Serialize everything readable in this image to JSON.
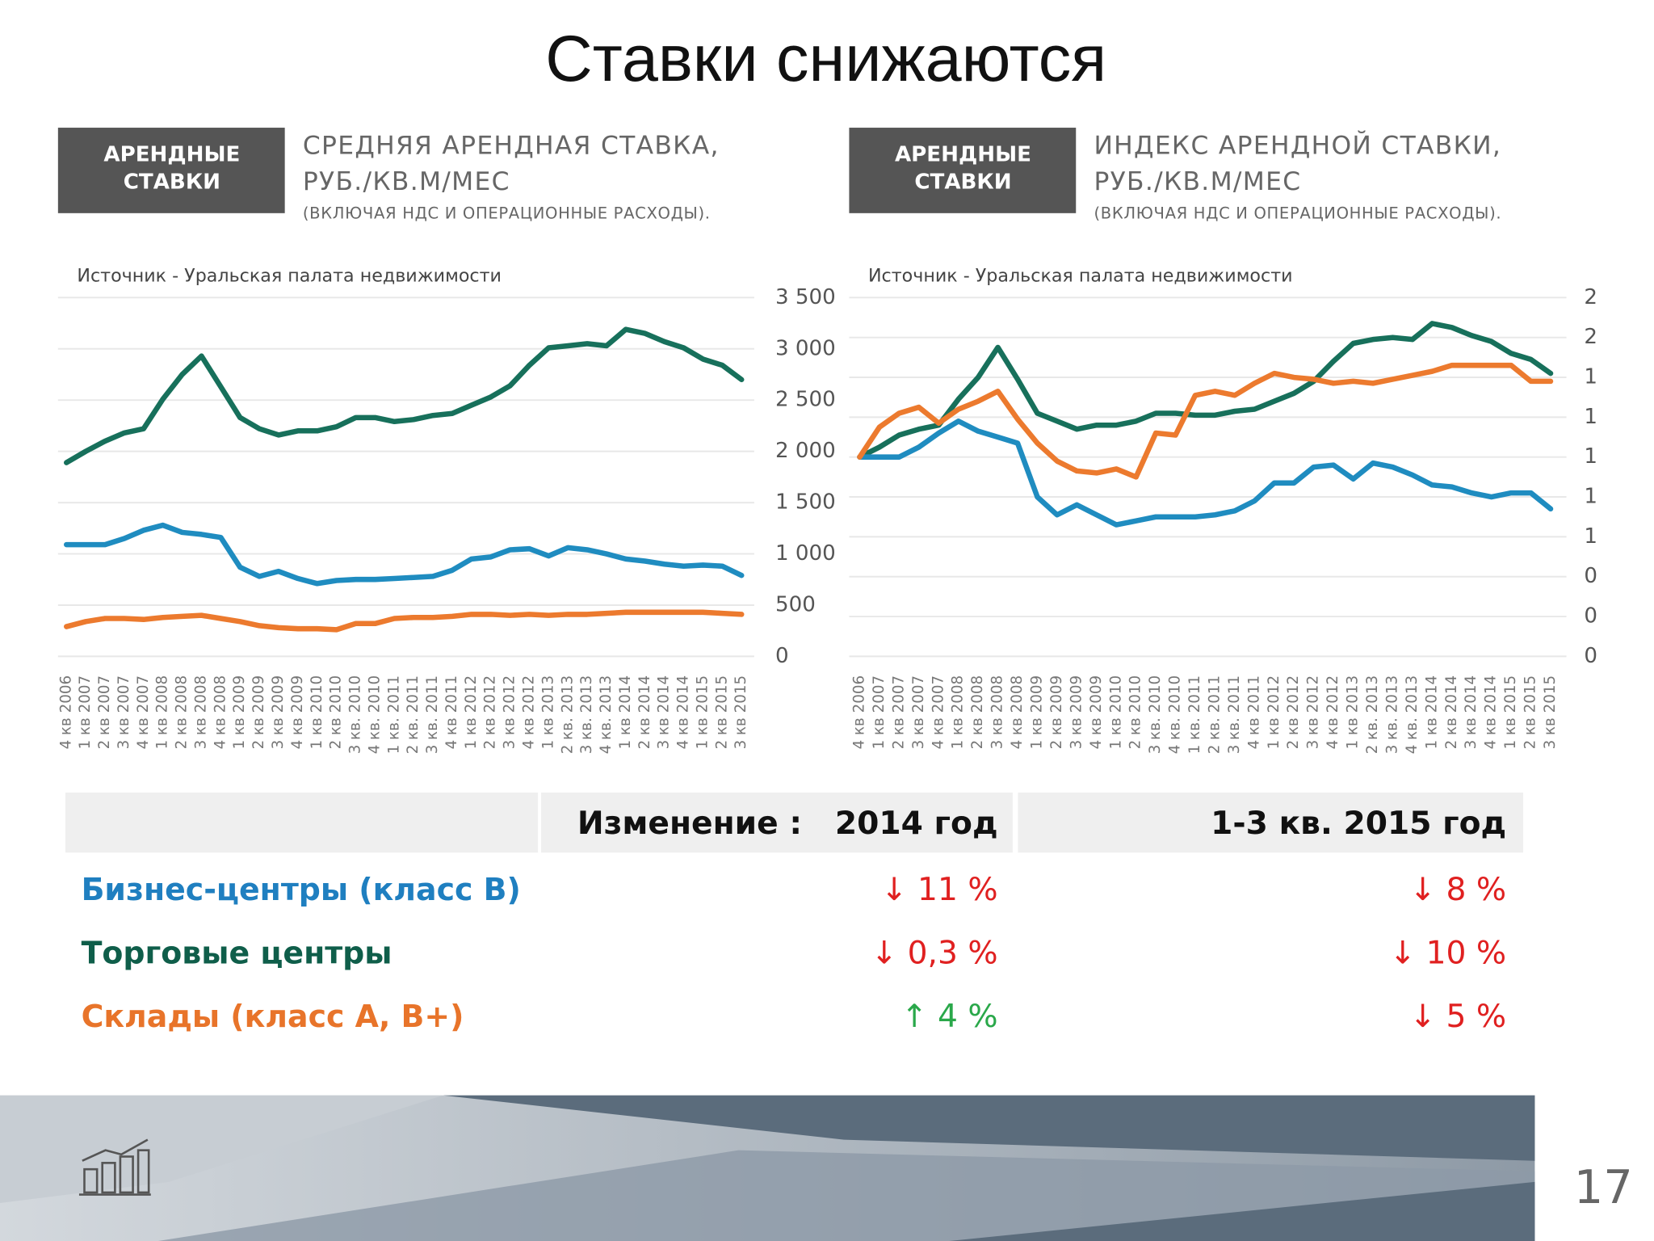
{
  "slide_title": "Ставки снижаются",
  "chart_data": [
    {
      "type": "line",
      "badge": [
        "АРЕНДНЫЕ",
        "СТАВКИ"
      ],
      "title": [
        "СРЕДНЯЯ АРЕНДНАЯ СТАВКА,",
        "РУБ./КВ.М/МЕС"
      ],
      "subtitle": "(ВКЛЮЧАЯ НДС И ОПЕРАЦИОННЫЕ РАСХОДЫ).",
      "source": "Источник - Уральская палата недвижимости",
      "categories": [
        "4 кв 2006",
        "1 кв 2007",
        "2 кв 2007",
        "3 кв 2007",
        "4 кв 2007",
        "1 кв 2008",
        "2 кв 2008",
        "3 кв 2008",
        "4 кв 2008",
        "1 кв 2009",
        "2 кв 2009",
        "3 кв 2009",
        "4 кв 2009",
        "1 кв 2010",
        "2 кв 2010",
        "3 кв. 2010",
        "4 кв. 2010",
        "1 кв. 2011",
        "2 кв. 2011",
        "3 кв. 2011",
        "4 кв 2011",
        "1 кв 2012",
        "2 кв 2012",
        "3 кв 2012",
        "4 кв 2012",
        "1 кв 2013",
        "2 кв. 2013",
        "3 кв. 2013",
        "4 кв. 2013",
        "1 кв 2014",
        "2 кв 2014",
        "3 кв 2014",
        "4 кв 2014",
        "1 кв 2015",
        "2 кв 2015",
        "3 кв 2015"
      ],
      "series": [
        {
          "color": "#17705b",
          "values": [
            1890,
            2000,
            2100,
            2180,
            2220,
            2510,
            2750,
            2930,
            2630,
            2330,
            2220,
            2160,
            2200,
            2200,
            2240,
            2330,
            2330,
            2290,
            2310,
            2350,
            2370,
            2450,
            2530,
            2640,
            2840,
            3010,
            3030,
            3050,
            3030,
            3190,
            3150,
            3070,
            3010,
            2900,
            2840,
            2700
          ]
        },
        {
          "color": "#1f8cc0",
          "values": [
            1090,
            1090,
            1090,
            1150,
            1230,
            1280,
            1210,
            1190,
            1160,
            870,
            780,
            830,
            760,
            710,
            740,
            750,
            750,
            760,
            770,
            780,
            840,
            950,
            970,
            1040,
            1050,
            980,
            1060,
            1040,
            1000,
            950,
            930,
            900,
            880,
            890,
            880,
            790
          ]
        },
        {
          "color": "#ec7a2e",
          "values": [
            290,
            340,
            370,
            370,
            360,
            380,
            390,
            400,
            370,
            340,
            300,
            280,
            270,
            270,
            260,
            320,
            320,
            370,
            380,
            380,
            390,
            410,
            410,
            400,
            410,
            400,
            410,
            410,
            420,
            430,
            430,
            430,
            430,
            430,
            420,
            410
          ]
        }
      ],
      "ylim": [
        0,
        3500
      ],
      "yticks": [
        0,
        500,
        {
          "value": 1000,
          "label": "1 000"
        },
        {
          "value": 1500,
          "label": "1 500"
        },
        {
          "value": 2000,
          "label": "2 000"
        },
        {
          "value": 2500,
          "label": "2 500"
        },
        {
          "value": 3000,
          "label": "3 000"
        },
        {
          "value": 3500,
          "label": "3 500"
        }
      ],
      "grid": true
    },
    {
      "type": "line",
      "badge": [
        "АРЕНДНЫЕ",
        "СТАВКИ"
      ],
      "title": [
        "ИНДЕКС АРЕНДНОЙ СТАВКИ,",
        "РУБ./КВ.М/МЕС"
      ],
      "subtitle": "(ВКЛЮЧАЯ НДС И ОПЕРАЦИОННЫЕ РАСХОДЫ).",
      "source": "Источник - Уральская палата недвижимости",
      "categories": [
        "4 кв 2006",
        "1 кв 2007",
        "2 кв 2007",
        "3 кв 2007",
        "4 кв 2007",
        "1 кв 2008",
        "2 кв 2008",
        "3 кв 2008",
        "4 кв 2008",
        "1 кв 2009",
        "2 кв 2009",
        "3 кв 2009",
        "4 кв 2009",
        "1 кв 2010",
        "2 кв 2010",
        "3 кв. 2010",
        "4 кв. 2010",
        "1 кв. 2011",
        "2 кв. 2011",
        "3 кв. 2011",
        "4 кв 2011",
        "1 кв 2012",
        "2 кв 2012",
        "3 кв 2012",
        "4 кв 2012",
        "1 кв 2013",
        "2 кв. 2013",
        "3 кв. 2013",
        "4 кв. 2013",
        "1 кв 2014",
        "2 кв 2014",
        "3 кв 2014",
        "4 кв 2014",
        "1 кв 2015",
        "2 кв 2015",
        "3 кв 2015"
      ],
      "series": [
        {
          "color": "#17705b",
          "values": [
            1.0,
            1.05,
            1.11,
            1.14,
            1.16,
            1.29,
            1.4,
            1.55,
            1.39,
            1.22,
            1.18,
            1.14,
            1.16,
            1.16,
            1.18,
            1.22,
            1.22,
            1.21,
            1.21,
            1.23,
            1.24,
            1.28,
            1.32,
            1.38,
            1.48,
            1.57,
            1.59,
            1.6,
            1.59,
            1.67,
            1.65,
            1.61,
            1.58,
            1.52,
            1.49,
            1.42
          ]
        },
        {
          "color": "#1f8cc0",
          "values": [
            1.0,
            1.0,
            1.0,
            1.05,
            1.12,
            1.18,
            1.13,
            1.1,
            1.07,
            0.8,
            0.71,
            0.76,
            0.71,
            0.66,
            0.68,
            0.7,
            0.7,
            0.7,
            0.71,
            0.73,
            0.78,
            0.87,
            0.87,
            0.95,
            0.96,
            0.89,
            0.97,
            0.95,
            0.91,
            0.86,
            0.85,
            0.82,
            0.8,
            0.82,
            0.82,
            0.74
          ]
        },
        {
          "color": "#ec7a2e",
          "values": [
            1.0,
            1.15,
            1.22,
            1.25,
            1.17,
            1.24,
            1.28,
            1.33,
            1.19,
            1.07,
            0.98,
            0.93,
            0.92,
            0.94,
            0.9,
            1.12,
            1.11,
            1.31,
            1.33,
            1.31,
            1.37,
            1.42,
            1.4,
            1.39,
            1.37,
            1.38,
            1.37,
            1.39,
            1.41,
            1.43,
            1.46,
            1.46,
            1.46,
            1.46,
            1.38,
            1.38
          ]
        }
      ],
      "ylim": [
        0,
        1.8
      ],
      "yticks": [
        0,
        {
          "value": 0.2,
          "label": "0"
        },
        {
          "value": 0.4,
          "label": "0"
        },
        {
          "value": 0.6,
          "label": "1"
        },
        {
          "value": 0.8,
          "label": "1"
        },
        1,
        {
          "value": 1.2,
          "label": "1"
        },
        {
          "value": 1.4,
          "label": "1"
        },
        {
          "value": 1.6,
          "label": "2"
        },
        {
          "value": 1.8,
          "label": "2"
        }
      ],
      "grid": true
    }
  ],
  "table": {
    "columns": [
      "Изменение :   2014 год",
      "1-3 кв. 2015 год"
    ],
    "rows": [
      {
        "label": "Бизнес-центры (класс В)",
        "color": "#1f7fc0",
        "cells": [
          "↓ 11 %",
          "↓ 8 %"
        ]
      },
      {
        "label": "Торговые центры",
        "color": "#0f5e4a",
        "cells": [
          "↓ 0,3 %",
          "↓ 10 %"
        ]
      },
      {
        "label": "Склады (класс А, В+)",
        "color": "#e8742a",
        "cells": [
          "↑ 4 %",
          "↓ 5 %"
        ]
      }
    ]
  },
  "page_number": "17"
}
